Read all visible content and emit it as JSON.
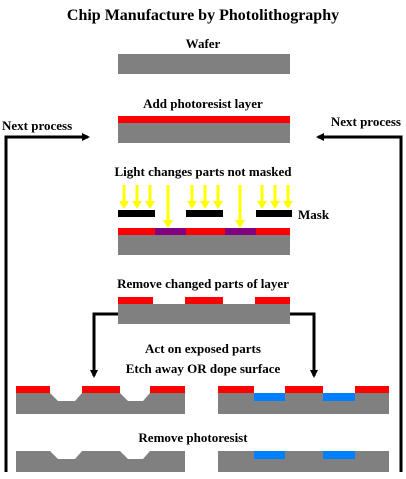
{
  "title": "Chip Manufacture by Photolithography",
  "steps": {
    "wafer": "Wafer",
    "add_photoresist": "Add photoresist layer",
    "light_changes": "Light changes parts not masked",
    "mask": "Mask",
    "remove_changed": "Remove changed parts of layer",
    "act_on_exposed": "Act on exposed parts",
    "etch_or_dope": "Etch away  OR  dope surface",
    "remove_photoresist": "Remove photoresist"
  },
  "loop": {
    "left_label": "Next process",
    "right_label": "Next process"
  },
  "colors": {
    "wafer": "#808080",
    "photoresist": "#ff0000",
    "exposed": "#800080",
    "mask": "#000000",
    "light": "#ffff00",
    "dopant": "#0080ff",
    "arrow": "#000000"
  }
}
